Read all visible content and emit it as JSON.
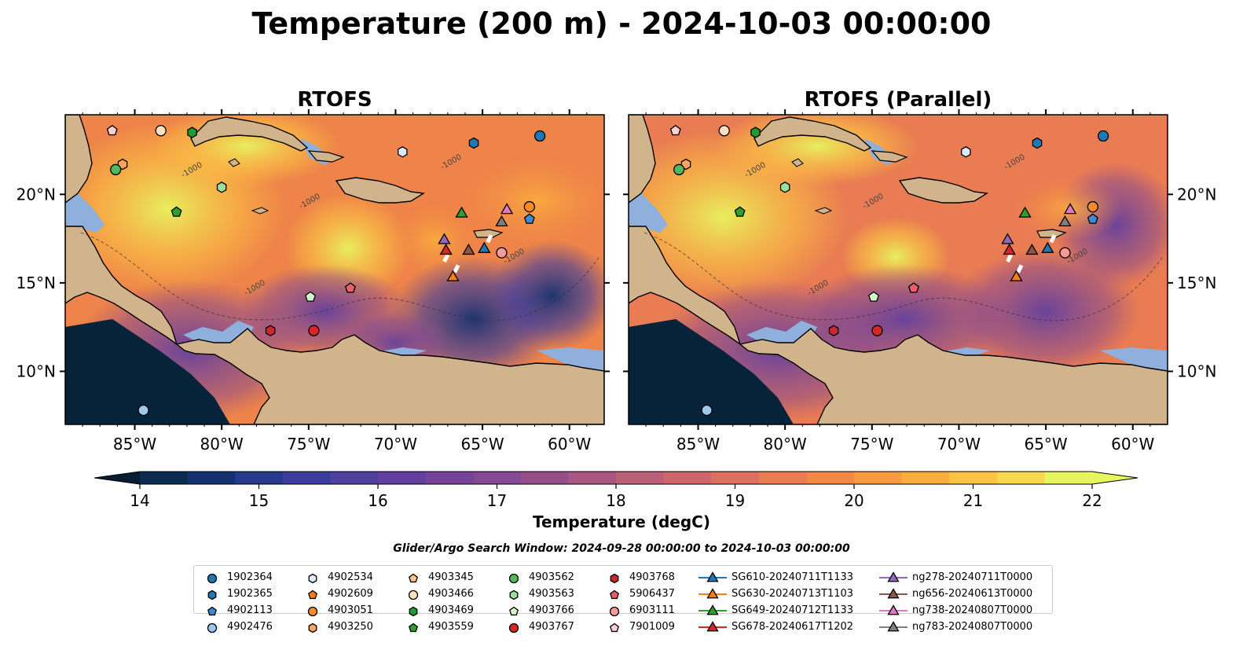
{
  "title": "Temperature (200 m) - 2024-10-03 00:00:00",
  "panels": [
    {
      "id": "rtofs",
      "title": "RTOFS"
    },
    {
      "id": "parallel",
      "title": "RTOFS (Parallel)"
    }
  ],
  "map": {
    "lon_range": [
      -89,
      -58
    ],
    "lat_range": [
      7,
      24.5
    ],
    "lon_ticks": [
      {
        "v": -85,
        "label": "85°W"
      },
      {
        "v": -80,
        "label": "80°W"
      },
      {
        "v": -75,
        "label": "75°W"
      },
      {
        "v": -70,
        "label": "70°W"
      },
      {
        "v": -65,
        "label": "65°W"
      },
      {
        "v": -60,
        "label": "60°W"
      }
    ],
    "lat_ticks": [
      {
        "v": 20,
        "label": "20°N"
      },
      {
        "v": 15,
        "label": "15°N"
      },
      {
        "v": 10,
        "label": "10°N"
      }
    ],
    "contour_label": "-1000",
    "colors": {
      "land": "#d2b48c",
      "shelf": "#8fb0dc",
      "deep_ocean": "#07233a"
    }
  },
  "colorbar": {
    "label": "Temperature (degC)",
    "min": 14,
    "max": 22,
    "step": 0.5,
    "ticks": [
      14,
      15,
      16,
      17,
      18,
      19,
      20,
      21,
      22
    ],
    "colors": [
      "#0c2a4f",
      "#143070",
      "#253a8c",
      "#3b3b9e",
      "#4f3f9f",
      "#623f9e",
      "#744398",
      "#844992",
      "#974f8a",
      "#a95683",
      "#bb5f78",
      "#cc666c",
      "#dc7060",
      "#e97c52",
      "#f38946",
      "#f89a3f",
      "#fbae3e",
      "#fcc244",
      "#f6d94f",
      "#e7f55f"
    ],
    "under_color": "#061d33",
    "over_color": "#e7f55f",
    "extend": "both"
  },
  "search_window": "Glider/Argo Search Window: 2024-09-28 00:00:00 to 2024-10-03 00:00:00",
  "legend": {
    "items": [
      {
        "label": "1902364",
        "marker": "circle",
        "color": "#1f77b4",
        "lon": -61.7,
        "lat": 23.3
      },
      {
        "label": "1902365",
        "marker": "hexagon",
        "color": "#1f77b4",
        "lon": -65.5,
        "lat": 22.9
      },
      {
        "label": "4902113",
        "marker": "pentagon",
        "color": "#3d8ad0",
        "lon": -62.3,
        "lat": 18.6
      },
      {
        "label": "4902476",
        "marker": "circle",
        "color": "#9ec8ec",
        "lon": -84.5,
        "lat": 7.8
      },
      {
        "label": "4902534",
        "marker": "hexagon",
        "color": "#dbe9fb",
        "lon": -69.6,
        "lat": 22.4
      },
      {
        "label": "4902609",
        "marker": "pentagon",
        "color": "#f57e0f",
        "lon": -72.6,
        "lat": 14.7
      },
      {
        "label": "4903051",
        "marker": "circle",
        "color": "#fb8b2b",
        "lon": -62.3,
        "lat": 19.3
      },
      {
        "label": "4903250",
        "marker": "hexagon",
        "color": "#fba65a",
        "lon": -85.7,
        "lat": 21.7
      },
      {
        "label": "4903345",
        "marker": "pentagon",
        "color": "#fbc589",
        "lon": -86.3,
        "lat": 23.6
      },
      {
        "label": "4903466",
        "marker": "circle",
        "color": "#fde0c0",
        "lon": -83.5,
        "lat": 23.6
      },
      {
        "label": "4903469",
        "marker": "hexagon",
        "color": "#219a2f",
        "lon": -81.7,
        "lat": 23.5
      },
      {
        "label": "4903559",
        "marker": "pentagon",
        "color": "#2ea02c",
        "lon": -82.6,
        "lat": 19.0
      },
      {
        "label": "4903562",
        "marker": "circle",
        "color": "#52b85a",
        "lon": -86.1,
        "lat": 21.4
      },
      {
        "label": "4903563",
        "marker": "hexagon",
        "color": "#9ae098",
        "lon": -80.0,
        "lat": 20.4
      },
      {
        "label": "4903766",
        "marker": "pentagon",
        "color": "#d3f5cc",
        "lon": -74.9,
        "lat": 14.2
      },
      {
        "label": "4903767",
        "marker": "circle",
        "color": "#d62727",
        "lon": -74.7,
        "lat": 12.3
      },
      {
        "label": "4903768",
        "marker": "hexagon",
        "color": "#c8282f",
        "lon": -77.2,
        "lat": 12.3
      },
      {
        "label": "5906437",
        "marker": "pentagon",
        "color": "#e9606a",
        "lon": -72.6,
        "lat": 14.7
      },
      {
        "label": "6903111",
        "marker": "circle",
        "color": "#f59b9b",
        "lon": -63.9,
        "lat": 16.7
      },
      {
        "label": "7901009",
        "marker": "pentagon",
        "color": "#fcd0d0",
        "lon": -86.3,
        "lat": 23.6
      },
      {
        "label": "SG610-20240711T1133",
        "marker": "triangle",
        "color": "#1f77b4",
        "line": true,
        "lon": -64.9,
        "lat": 16.9
      },
      {
        "label": "SG630-20240713T1103",
        "marker": "triangle",
        "color": "#ff7f0e",
        "line": true,
        "lon": -66.7,
        "lat": 15.3
      },
      {
        "label": "SG649-20240712T1133",
        "marker": "triangle",
        "color": "#2ca02c",
        "line": true,
        "lon": -66.2,
        "lat": 18.9
      },
      {
        "label": "SG678-20240617T1202",
        "marker": "triangle",
        "color": "#d62728",
        "line": true,
        "lon": -67.1,
        "lat": 16.8
      },
      {
        "label": "ng278-20240711T0000",
        "marker": "triangle",
        "color": "#9467bd",
        "line": true,
        "lon": -67.2,
        "lat": 17.4
      },
      {
        "label": "ng656-20240613T0000",
        "marker": "triangle",
        "color": "#8c564b",
        "line": true,
        "lon": -65.8,
        "lat": 16.8
      },
      {
        "label": "ng738-20240807T0000",
        "marker": "triangle",
        "color": "#e377c2",
        "line": true,
        "lon": -63.6,
        "lat": 19.1
      },
      {
        "label": "ng783-20240807T0000",
        "marker": "triangle",
        "color": "#7f7f7f",
        "line": true,
        "lon": -63.9,
        "lat": 18.4
      }
    ]
  }
}
